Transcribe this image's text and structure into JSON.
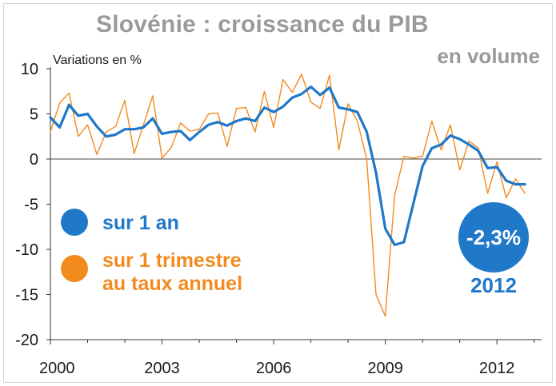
{
  "chart_data": {
    "type": "line",
    "title": "Slovénie : croissance du PIB",
    "subtitle": "en volume",
    "ylabel": "Variations en %",
    "xlabel": "",
    "ylim": [
      -20,
      10
    ],
    "yticks": [
      "10",
      "5",
      "0",
      "-5",
      "-10",
      "-15",
      "-20"
    ],
    "xlim": [
      2000,
      2013.2
    ],
    "xticks": [
      "2000",
      "2003",
      "2006",
      "2009",
      "2012"
    ],
    "grid": false,
    "legend_position": "left",
    "colors": {
      "annual": "#1f78c8",
      "quarterly": "#f28a1e"
    },
    "series": [
      {
        "name": "sur 1 an",
        "color": "#1f78c8",
        "x": [
          2000.0,
          2000.25,
          2000.5,
          2000.75,
          2001.0,
          2001.25,
          2001.5,
          2001.75,
          2002.0,
          2002.25,
          2002.5,
          2002.75,
          2003.0,
          2003.25,
          2003.5,
          2003.75,
          2004.0,
          2004.25,
          2004.5,
          2004.75,
          2005.0,
          2005.25,
          2005.5,
          2005.75,
          2006.0,
          2006.25,
          2006.5,
          2006.75,
          2007.0,
          2007.25,
          2007.5,
          2007.75,
          2008.0,
          2008.25,
          2008.5,
          2008.75,
          2009.0,
          2009.25,
          2009.5,
          2009.75,
          2010.0,
          2010.25,
          2010.5,
          2010.75,
          2011.0,
          2011.25,
          2011.5,
          2011.75,
          2012.0,
          2012.25,
          2012.5,
          2012.75
        ],
        "y": [
          4.6,
          3.5,
          6.0,
          4.8,
          5.0,
          3.6,
          2.5,
          2.7,
          3.3,
          3.3,
          3.5,
          4.5,
          2.8,
          3.0,
          3.1,
          2.1,
          3.0,
          3.8,
          4.1,
          3.7,
          4.2,
          4.5,
          4.2,
          5.7,
          5.2,
          5.8,
          6.8,
          7.2,
          8.0,
          7.1,
          7.9,
          5.7,
          5.5,
          5.2,
          3.0,
          -1.5,
          -7.7,
          -9.5,
          -9.2,
          -5.0,
          -0.8,
          1.2,
          1.6,
          2.6,
          2.2,
          1.6,
          0.9,
          -1.0,
          -0.9,
          -2.4,
          -2.8,
          -2.8
        ]
      },
      {
        "name": "sur 1 trimestre au taux annuel",
        "color": "#f28a1e",
        "x": [
          2000.0,
          2000.25,
          2000.5,
          2000.75,
          2001.0,
          2001.25,
          2001.5,
          2001.75,
          2002.0,
          2002.25,
          2002.5,
          2002.75,
          2003.0,
          2003.25,
          2003.5,
          2003.75,
          2004.0,
          2004.25,
          2004.5,
          2004.75,
          2005.0,
          2005.25,
          2005.5,
          2005.75,
          2006.0,
          2006.25,
          2006.5,
          2006.75,
          2007.0,
          2007.25,
          2007.5,
          2007.75,
          2008.0,
          2008.25,
          2008.5,
          2008.75,
          2009.0,
          2009.25,
          2009.5,
          2009.75,
          2010.0,
          2010.25,
          2010.5,
          2010.75,
          2011.0,
          2011.25,
          2011.5,
          2011.75,
          2012.0,
          2012.25,
          2012.5,
          2012.75
        ],
        "y": [
          3.0,
          6.2,
          7.3,
          2.5,
          3.8,
          0.5,
          3.0,
          3.6,
          6.5,
          0.6,
          3.8,
          7.0,
          0.1,
          1.3,
          4.0,
          3.1,
          3.3,
          5.0,
          5.1,
          1.4,
          5.6,
          5.7,
          3.0,
          7.5,
          3.5,
          8.8,
          7.4,
          9.4,
          6.3,
          5.6,
          9.3,
          1.0,
          6.1,
          4.2,
          0.0,
          -15.0,
          -17.4,
          -4.0,
          0.3,
          0.1,
          0.3,
          4.2,
          1.0,
          3.8,
          -1.2,
          2.0,
          1.2,
          -3.8,
          -0.3,
          -4.3,
          -2.2,
          -3.8
        ]
      }
    ],
    "legend": {
      "annual": "sur 1 an",
      "quarterly_line1": "sur 1 trimestre",
      "quarterly_line2": "au taux annuel"
    },
    "annotation": {
      "value": "-2,3%",
      "year": "2012"
    }
  }
}
